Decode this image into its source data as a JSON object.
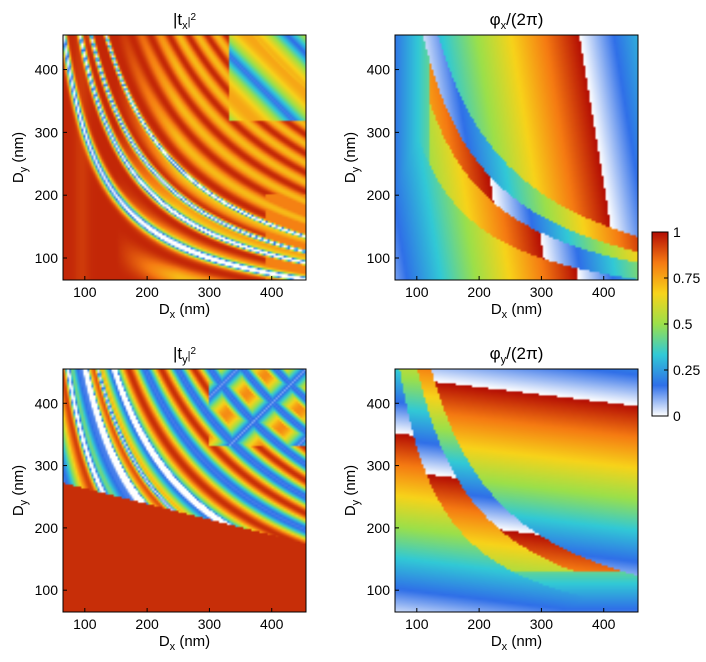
{
  "chart_data": [
    {
      "type": "heatmap",
      "title": "|tx|²",
      "title_main": "|t",
      "title_sub": "x",
      "title_sup": "2",
      "title_end": "",
      "xlabel_main": "D",
      "xlabel_sub": "x",
      "xlabel_unit": " (nm)",
      "ylabel_main": "D",
      "ylabel_sub": "y",
      "ylabel_unit": " (nm)",
      "xlabel": "Dx (nm)",
      "ylabel": "Dy (nm)",
      "xlim": [
        65,
        455
      ],
      "ylim": [
        65,
        455
      ],
      "xticks": [
        100,
        200,
        300,
        400
      ],
      "yticks": [
        100,
        200,
        300,
        400
      ],
      "xtick_labels": [
        "100",
        "200",
        "300",
        "400"
      ],
      "ytick_labels": [
        "100",
        "200",
        "300",
        "400"
      ],
      "clim": [
        0,
        1
      ],
      "description": "Transmission amplitude squared for x-polarization; mostly ~0.95 (dark red) over the lower-left region, with curved resonance bands (low transmission) sweeping from upper-left to lower-right beyond Dx≈150 nm.",
      "resonance_curves_k": [
        30000,
        42000,
        50000,
        61000
      ]
    },
    {
      "type": "heatmap",
      "title": "φx/(2π)",
      "title_main": "φ",
      "title_sub": "x",
      "title_sup": "",
      "title_end": "/(2π)",
      "xlabel_main": "D",
      "xlabel_sub": "x",
      "xlabel_unit": " (nm)",
      "ylabel_main": "D",
      "ylabel_sub": "y",
      "ylabel_unit": " (nm)",
      "xlabel": "Dx (nm)",
      "ylabel": "Dy (nm)",
      "xlim": [
        65,
        455
      ],
      "ylim": [
        65,
        455
      ],
      "xticks": [
        100,
        200,
        300,
        400
      ],
      "yticks": [
        100,
        200,
        300,
        400
      ],
      "xtick_labels": [
        "100",
        "200",
        "300",
        "400"
      ],
      "ytick_labels": [
        "100",
        "200",
        "300",
        "400"
      ],
      "clim": [
        0,
        1
      ],
      "description": "Normalized transmission phase for x-polarization, increasing with Dx with 2π wraps along curved resonance bands.",
      "resonance_curves_k": [
        30000,
        42000,
        50000,
        61000
      ]
    },
    {
      "type": "heatmap",
      "title": "|ty|²",
      "title_main": "|t",
      "title_sub": "y",
      "title_sup": "2",
      "title_end": "",
      "xlabel_main": "D",
      "xlabel_sub": "x",
      "xlabel_unit": " (nm)",
      "ylabel_main": "D",
      "ylabel_sub": "y",
      "ylabel_unit": " (nm)",
      "xlabel": "Dx (nm)",
      "ylabel": "Dy (nm)",
      "xlim": [
        65,
        455
      ],
      "ylim": [
        65,
        455
      ],
      "xticks": [
        100,
        200,
        300,
        400
      ],
      "yticks": [
        100,
        200,
        300,
        400
      ],
      "xtick_labels": [
        "100",
        "200",
        "300",
        "400"
      ],
      "ytick_labels": [
        "100",
        "200",
        "300",
        "400"
      ],
      "clim": [
        0,
        1
      ],
      "description": "Transmission amplitude squared for y-polarization; high (~0.95) for Dy below ~180 nm, with resonance bands above sweeping from upper-left down to the right.",
      "resonance_curves_k": [
        30000,
        42000,
        50000,
        61000
      ]
    },
    {
      "type": "heatmap",
      "title": "φy/(2π)",
      "title_main": "φ",
      "title_sub": "y",
      "title_sup": "",
      "title_end": "/(2π)",
      "xlabel_main": "D",
      "xlabel_sub": "x",
      "xlabel_unit": " (nm)",
      "ylabel_main": "D",
      "ylabel_sub": "y",
      "ylabel_unit": " (nm)",
      "xlabel": "Dx (nm)",
      "ylabel": "Dy (nm)",
      "xlim": [
        65,
        455
      ],
      "ylim": [
        65,
        455
      ],
      "xticks": [
        100,
        200,
        300,
        400
      ],
      "yticks": [
        100,
        200,
        300,
        400
      ],
      "xtick_labels": [
        "100",
        "200",
        "300",
        "400"
      ],
      "ytick_labels": [
        "100",
        "200",
        "300",
        "400"
      ],
      "clim": [
        0,
        1
      ],
      "description": "Normalized transmission phase for y-polarization, increasing with Dy with 2π wraps along curved resonance bands.",
      "resonance_curves_k": [
        30000,
        42000,
        50000,
        61000
      ]
    }
  ],
  "colorbar": {
    "ticks": [
      0,
      0.25,
      0.5,
      0.75,
      1
    ],
    "tick_labels": [
      "0",
      "0.25",
      "0.5",
      "0.75",
      "1"
    ],
    "colormap": [
      "#ffffff",
      "#2f6fe8",
      "#31c9d6",
      "#9be04a",
      "#f7d31a",
      "#f57a12",
      "#b30d04"
    ]
  },
  "colors": {
    "low": "#ffffff",
    "blue": "#2f6fe8",
    "cyan": "#31c9d6",
    "green": "#9be04a",
    "yellow": "#f7d31a",
    "orange": "#f57a12",
    "dark_red": "#b30d04"
  }
}
